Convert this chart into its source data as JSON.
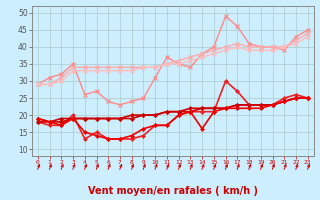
{
  "background_color": "#cceeff",
  "grid_color": "#aacccc",
  "xlabel": "Vent moyen/en rafales ( km/h )",
  "xlabel_color": "#cc0000",
  "x_ticks": [
    0,
    1,
    2,
    3,
    4,
    5,
    6,
    7,
    8,
    9,
    10,
    11,
    12,
    13,
    14,
    15,
    16,
    17,
    18,
    19,
    20,
    21,
    22,
    23
  ],
  "ylim": [
    8,
    52
  ],
  "yticks": [
    10,
    15,
    20,
    25,
    30,
    35,
    40,
    45,
    50
  ],
  "lines": [
    {
      "name": "rafales_max",
      "color": "#ff8888",
      "lw": 1.0,
      "marker": "x",
      "ms": 3,
      "mew": 0.8,
      "y": [
        29,
        31,
        32,
        35,
        26,
        27,
        24,
        23,
        24,
        25,
        31,
        37,
        35,
        34,
        38,
        40,
        49,
        46,
        41,
        40,
        40,
        39,
        43,
        45
      ]
    },
    {
      "name": "rafales_upper",
      "color": "#ffaaaa",
      "lw": 1.0,
      "marker": "x",
      "ms": 3,
      "mew": 0.8,
      "y": [
        29,
        29,
        31,
        34,
        34,
        34,
        34,
        34,
        34,
        34,
        34,
        35,
        36,
        37,
        38,
        39,
        40,
        41,
        40,
        40,
        40,
        40,
        42,
        44
      ]
    },
    {
      "name": "rafales_mid",
      "color": "#ffbbbb",
      "lw": 1.0,
      "marker": "x",
      "ms": 3,
      "mew": 0.8,
      "y": [
        29,
        29,
        30,
        33,
        33,
        33,
        33,
        33,
        33,
        34,
        34,
        35,
        35,
        36,
        37,
        38,
        39,
        40,
        39,
        39,
        39,
        40,
        41,
        43
      ]
    },
    {
      "name": "vent_min",
      "color": "#ee2222",
      "lw": 1.2,
      "marker": "D",
      "ms": 2,
      "mew": 0.5,
      "y": [
        18,
        17,
        17,
        20,
        13,
        15,
        13,
        13,
        13,
        14,
        17,
        17,
        20,
        21,
        21,
        21,
        30,
        27,
        23,
        23,
        23,
        25,
        26,
        25
      ]
    },
    {
      "name": "vent_lower1",
      "color": "#cc0000",
      "lw": 1.2,
      "marker": "D",
      "ms": 2,
      "mew": 0.5,
      "y": [
        18,
        18,
        19,
        19,
        19,
        19,
        19,
        19,
        20,
        20,
        20,
        21,
        21,
        22,
        22,
        22,
        22,
        23,
        23,
        23,
        23,
        24,
        25,
        25
      ]
    },
    {
      "name": "vent_lower2",
      "color": "#cc0000",
      "lw": 1.2,
      "marker": "D",
      "ms": 2,
      "mew": 0.5,
      "y": [
        19,
        18,
        18,
        19,
        19,
        19,
        19,
        19,
        19,
        20,
        20,
        21,
        21,
        21,
        22,
        22,
        22,
        23,
        23,
        23,
        23,
        24,
        25,
        25
      ]
    },
    {
      "name": "vent_lower3",
      "color": "#ee0000",
      "lw": 1.2,
      "marker": "D",
      "ms": 2,
      "mew": 0.5,
      "y": [
        19,
        18,
        17,
        19,
        15,
        14,
        13,
        13,
        14,
        16,
        17,
        17,
        20,
        21,
        16,
        21,
        22,
        22,
        22,
        22,
        23,
        24,
        25,
        25
      ]
    }
  ]
}
